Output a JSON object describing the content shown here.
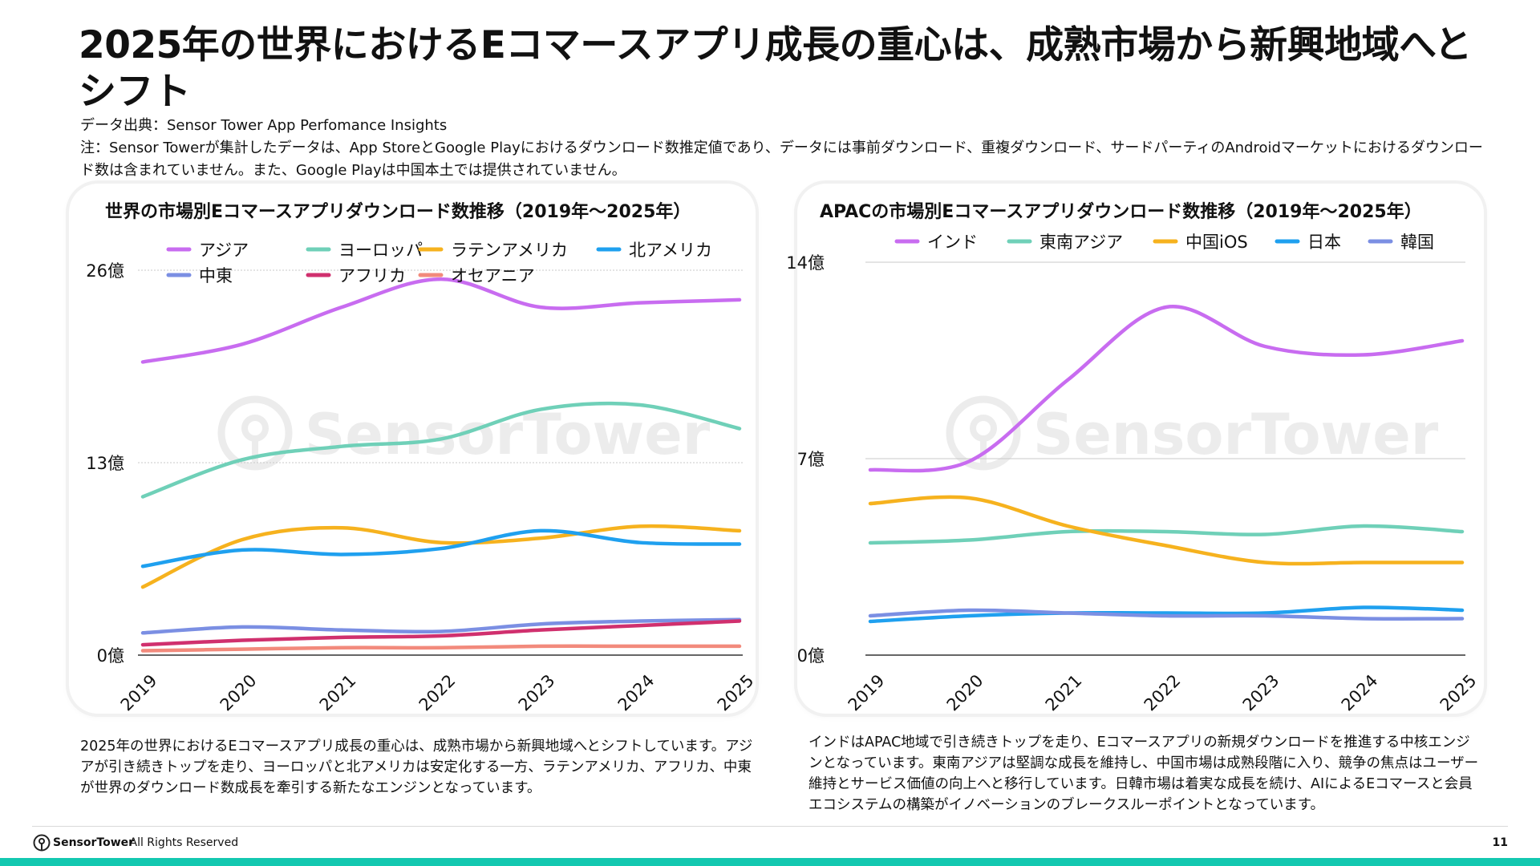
{
  "page": {
    "title": "2025年の世界におけるEコマースアプリ成長の重心は、成熟市場から新興地域へとシフト",
    "source": "データ出典：Sensor Tower App Perfomance Insights",
    "note": "注：Sensor Towerが集計したデータは、App StoreとGoogle Playにおけるダウンロード数推定値であり、データには事前ダウンロード、重複ダウンロード、サードパーティのAndroidマーケットにおけるダウンロード数は含まれていません。また、Google Playは中国本土では提供されていません。",
    "left_text": "2025年の世界におけるEコマースアプリ成長の重心は、成熟市場から新興地域へとシフトしています。アジアが引き続きトップを走り、ヨーロッパと北アメリカは安定化する一方、ラテンアメリカ、アフリカ、中東が世界のダウンロード数成長を牽引する新たなエンジンとなっています。",
    "right_text": "インドはAPAC地域で引き続きトップを走り、Eコマースアプリの新規ダウンロードを推進する中核エンジンとなっています。東南アジアは堅調な成長を維持し、中国市場は成熟段階に入り、競争の焦点はユーザー維持とサービス価値の向上へと移行しています。日韓市場は着実な成長を続け、AIによるEコマースと会員エコシステムの構築がイノベーションのブレークスルーポイントとなっています。",
    "watermark": "SensorTower",
    "footer_brand": "SensorTower",
    "footer_rights": "- All Rights Reserved",
    "page_number": "11"
  },
  "colors": {
    "grid": "#c8c8c8",
    "axis": "#333333",
    "watermark": "#ececec",
    "accent_bar": "#14c8b0"
  },
  "chart_data": [
    {
      "type": "line",
      "title": "世界の市場別Eコマースアプリダウンロード数推移（2019年～2025年）",
      "categories": [
        "2019",
        "2020",
        "2021",
        "2022",
        "2023",
        "2024",
        "2025"
      ],
      "ylim": [
        0,
        26
      ],
      "yticks": [
        0,
        13,
        26
      ],
      "ytick_labels": [
        "0億",
        "13億",
        "26億"
      ],
      "grid": true,
      "legend_position": "top",
      "series": [
        {
          "name": "アジア",
          "color": "#c86cf0",
          "values": [
            19.8,
            21.0,
            23.5,
            25.4,
            23.5,
            23.8,
            24.0
          ]
        },
        {
          "name": "ヨーロッパ",
          "color": "#6fd0b8",
          "values": [
            10.7,
            13.2,
            14.1,
            14.6,
            16.6,
            16.9,
            15.3
          ]
        },
        {
          "name": "ラテンアメリカ",
          "color": "#f6b21e",
          "values": [
            4.6,
            7.8,
            8.6,
            7.6,
            7.9,
            8.7,
            8.4
          ]
        },
        {
          "name": "北アメリカ",
          "color": "#1fa0ef",
          "values": [
            6.0,
            7.1,
            6.8,
            7.2,
            8.4,
            7.6,
            7.5
          ]
        },
        {
          "name": "中東",
          "color": "#7b8fe3",
          "values": [
            1.5,
            1.9,
            1.7,
            1.6,
            2.1,
            2.3,
            2.4
          ]
        },
        {
          "name": "アフリカ",
          "color": "#d0306e",
          "values": [
            0.7,
            1.0,
            1.2,
            1.3,
            1.7,
            2.0,
            2.3
          ]
        },
        {
          "name": "オセアニア",
          "color": "#f28a7c",
          "values": [
            0.3,
            0.4,
            0.5,
            0.5,
            0.6,
            0.6,
            0.6
          ]
        }
      ]
    },
    {
      "type": "line",
      "title": "APACの市場別Eコマースアプリダウンロード数推移（2019年～2025年）",
      "categories": [
        "2019",
        "2020",
        "2021",
        "2022",
        "2023",
        "2024",
        "2025"
      ],
      "ylim": [
        0,
        14
      ],
      "yticks": [
        0,
        7,
        14
      ],
      "ytick_labels": [
        "0億",
        "7億",
        "14億"
      ],
      "grid": true,
      "legend_position": "top",
      "series": [
        {
          "name": "インド",
          "color": "#c86cf0",
          "values": [
            6.6,
            6.9,
            9.8,
            12.4,
            11.0,
            10.7,
            11.2
          ]
        },
        {
          "name": "東南アジア",
          "color": "#6fd0b8",
          "values": [
            4.0,
            4.1,
            4.4,
            4.4,
            4.3,
            4.6,
            4.4
          ]
        },
        {
          "name": "中国iOS",
          "color": "#f6b21e",
          "values": [
            5.4,
            5.6,
            4.6,
            3.9,
            3.3,
            3.3,
            3.3
          ]
        },
        {
          "name": "日本",
          "color": "#1fa0ef",
          "values": [
            1.2,
            1.4,
            1.5,
            1.5,
            1.5,
            1.7,
            1.6
          ]
        },
        {
          "name": "韓国",
          "color": "#7b8fe3",
          "values": [
            1.4,
            1.6,
            1.5,
            1.4,
            1.4,
            1.3,
            1.3
          ]
        }
      ]
    }
  ]
}
